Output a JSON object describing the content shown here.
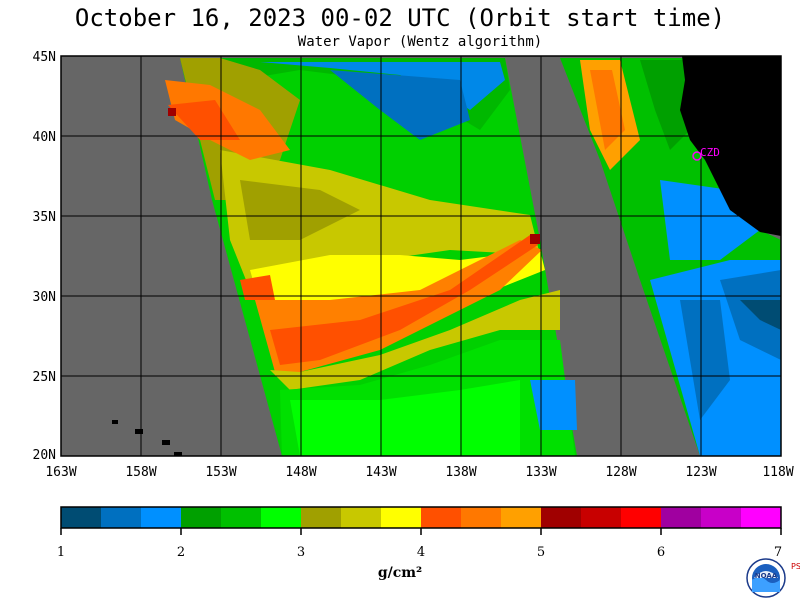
{
  "header": {
    "title": "October 16, 2023  00-02 UTC  (Orbit start time)",
    "subtitle": "Water Vapor (Wentz algorithm)"
  },
  "map": {
    "lat_labels": [
      "45N",
      "40N",
      "35N",
      "30N",
      "25N",
      "20N"
    ],
    "lon_labels": [
      "163W",
      "158W",
      "153W",
      "148W",
      "143W",
      "138W",
      "133W",
      "128W",
      "123W",
      "118W"
    ],
    "station_label": "CZD",
    "colors": {
      "no_data": "#666666",
      "land": "#000000",
      "station": "#ff00ff"
    }
  },
  "colorbar": {
    "ticks": [
      "1",
      "2",
      "3",
      "4",
      "5",
      "6",
      "7"
    ],
    "unit": "g/cm²",
    "colors": [
      "#004c73",
      "#0070c0",
      "#0090ff",
      "#00a000",
      "#00c000",
      "#00ff00",
      "#a0a000",
      "#c8c800",
      "#ffff00",
      "#ff5000",
      "#ff7800",
      "#ffa000",
      "#a00000",
      "#c80000",
      "#ff0000",
      "#a000a0",
      "#c800c8",
      "#ff00ff"
    ]
  },
  "logo": {
    "name": "NOAA",
    "side_text": "PSL"
  }
}
